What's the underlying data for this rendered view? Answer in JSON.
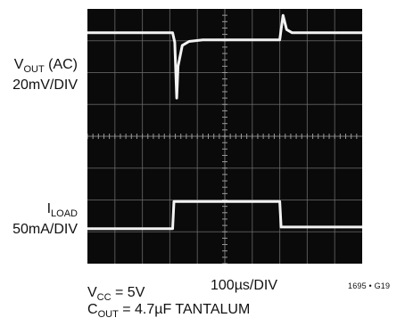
{
  "labels": {
    "ch1_name_main": "V",
    "ch1_name_sub": "OUT",
    "ch1_name_suffix": " (AC)",
    "ch1_scale": "20mV/DIV",
    "ch2_name_main": "I",
    "ch2_name_sub": "LOAD",
    "ch2_scale": "50mA/DIV",
    "time_scale": "100µs/DIV",
    "figure_id": "1695 • G19",
    "cond1_main": "V",
    "cond1_sub": "CC",
    "cond1_rest": " = 5V",
    "cond2_main": "C",
    "cond2_sub": "OUT",
    "cond2_rest": " = 4.7µF TANTALUM"
  },
  "chart_data": {
    "type": "line",
    "title": "",
    "xlabel": "100µs/DIV",
    "ylabel": "",
    "grid": true,
    "x_divisions": 10,
    "y_divisions": 8,
    "xlim": [
      0,
      10
    ],
    "ylim": [
      0,
      8
    ],
    "colors": {
      "background": "#0a0a0a",
      "trace": "#f2f2f2",
      "grid": "#6a6a6a"
    },
    "series": [
      {
        "name": "VOUT (AC)",
        "points": [
          [
            0,
            7.25
          ],
          [
            3.1,
            7.25
          ],
          [
            3.18,
            6.95
          ],
          [
            3.22,
            5.9
          ],
          [
            3.25,
            5.2
          ],
          [
            3.3,
            6.2
          ],
          [
            3.45,
            6.85
          ],
          [
            3.7,
            6.98
          ],
          [
            4.2,
            7.03
          ],
          [
            7.0,
            7.03
          ],
          [
            7.05,
            7.35
          ],
          [
            7.12,
            7.8
          ],
          [
            7.25,
            7.35
          ],
          [
            7.45,
            7.25
          ],
          [
            10,
            7.25
          ]
        ]
      },
      {
        "name": "ILOAD",
        "points": [
          [
            0,
            1.1
          ],
          [
            3.1,
            1.1
          ],
          [
            3.15,
            1.95
          ],
          [
            7.0,
            1.95
          ],
          [
            7.05,
            1.15
          ],
          [
            10,
            1.15
          ]
        ]
      }
    ]
  }
}
